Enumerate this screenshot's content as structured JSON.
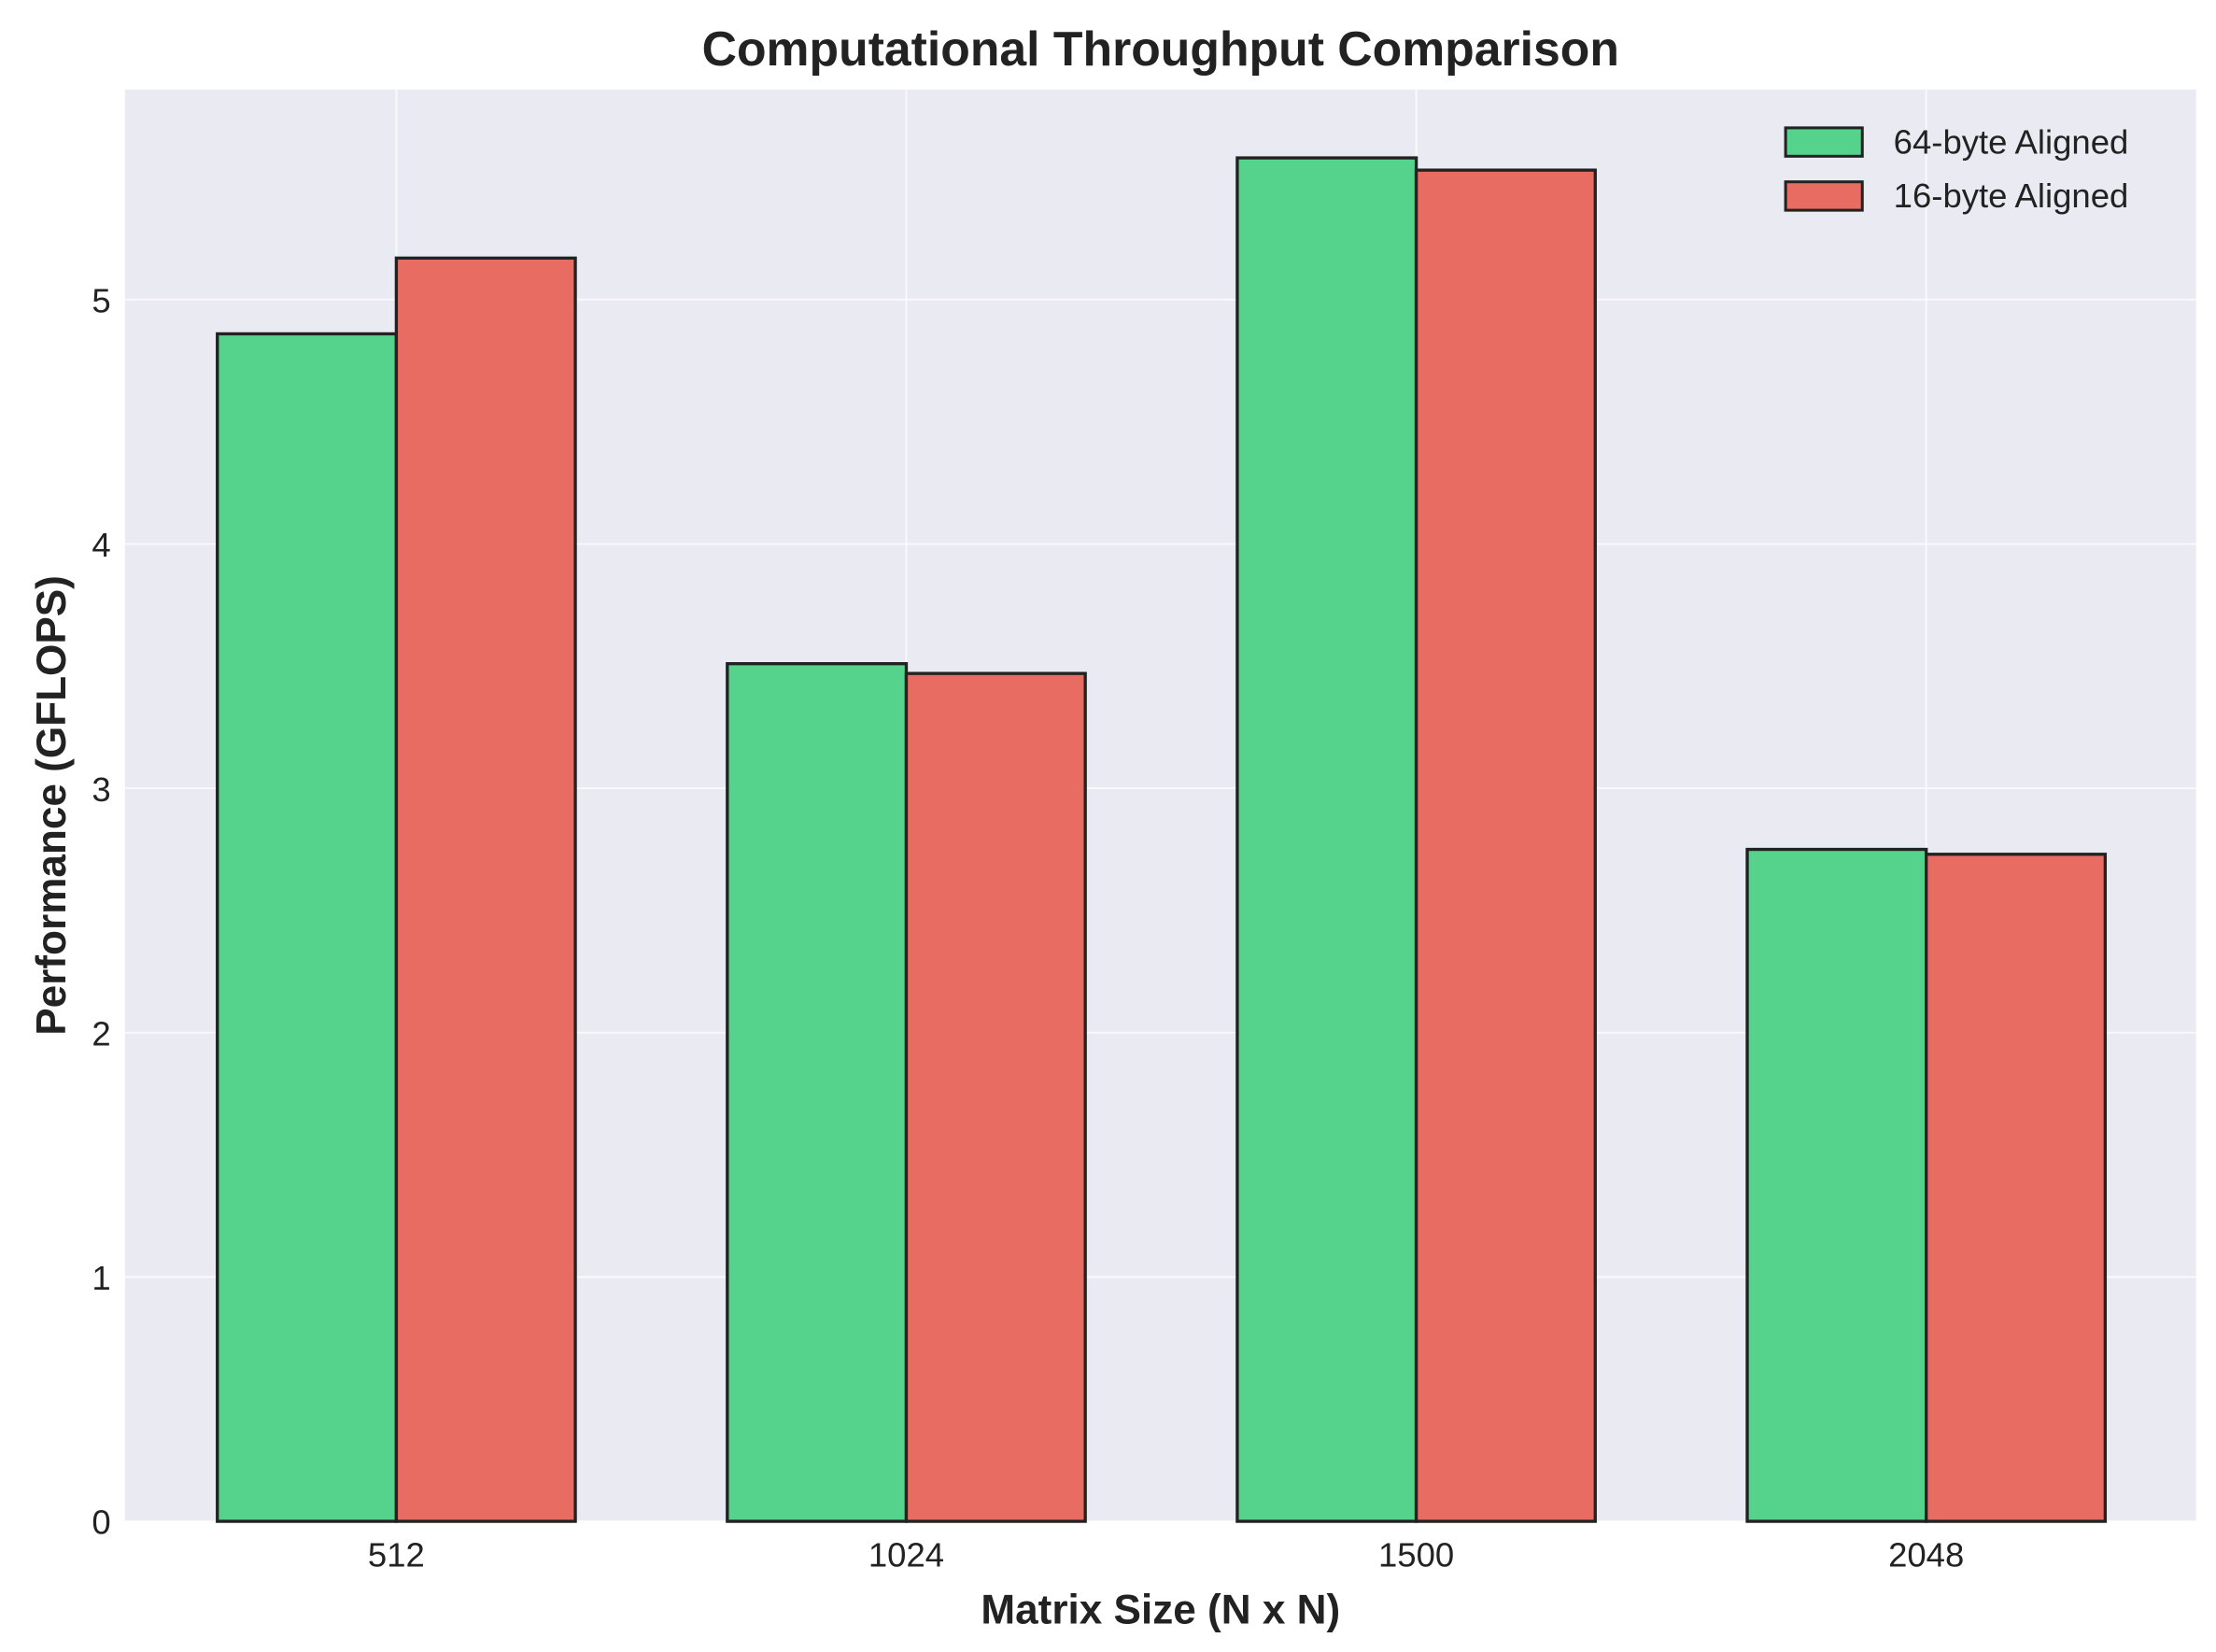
{
  "chart_data": {
    "type": "bar",
    "title": "Computational Throughput Comparison",
    "xlabel": "Matrix Size (N x N)",
    "ylabel": "Performance (GFLOPS)",
    "categories": [
      "512",
      "1024",
      "1500",
      "2048"
    ],
    "series": [
      {
        "name": "64-byte Aligned",
        "color": "#55d28b",
        "values": [
          4.86,
          3.51,
          5.58,
          2.75
        ]
      },
      {
        "name": "16-byte Aligned",
        "color": "#e86c62",
        "values": [
          5.17,
          3.47,
          5.53,
          2.73
        ]
      }
    ],
    "yticks": [
      "0",
      "1",
      "2",
      "3",
      "4",
      "5"
    ],
    "ylim": [
      0,
      5.86
    ],
    "grid": true,
    "legend_position": "top-right",
    "background_color": "#eaeaf2",
    "edge_color": "#222222"
  }
}
